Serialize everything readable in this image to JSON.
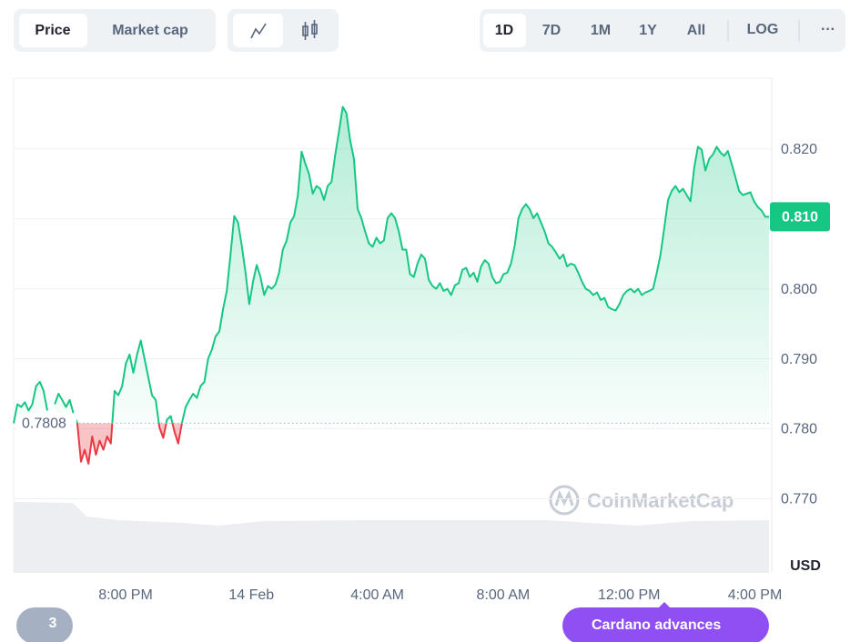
{
  "toolbar": {
    "price": "Price",
    "market_cap": "Market cap",
    "ranges": [
      "1D",
      "7D",
      "1M",
      "1Y",
      "All"
    ],
    "log": "LOG",
    "more": "···"
  },
  "chart_data": {
    "type": "line",
    "series": [
      {
        "color": "#16c784",
        "down_color": "#ea3943",
        "values": [
          0.7808,
          0.7835,
          0.7831,
          0.7838,
          0.7826,
          0.7835,
          0.7861,
          0.7867,
          0.7854,
          0.7826,
          null,
          0.7835,
          0.785,
          0.7841,
          0.7831,
          0.7841,
          0.7822,
          0.7808,
          0.7753,
          0.777,
          0.775,
          0.7789,
          0.7763,
          0.7783,
          0.777,
          0.7789,
          0.7779,
          0.7854,
          0.7848,
          0.7861,
          0.7893,
          0.7906,
          0.788,
          0.7906,
          0.7926,
          0.79,
          0.7874,
          0.7848,
          0.7841,
          0.7802,
          0.7787,
          0.7813,
          0.7818,
          0.7796,
          0.7779,
          0.7808,
          0.7831,
          0.7841,
          0.785,
          0.7844,
          0.7861,
          0.7867,
          0.79,
          0.7913,
          0.7932,
          0.7939,
          0.7971,
          0.7997,
          0.8049,
          0.8104,
          0.8095,
          0.8062,
          0.8023,
          0.7978,
          0.801,
          0.8034,
          0.8017,
          0.7991,
          0.8004,
          0.8,
          0.8006,
          0.8023,
          0.8056,
          0.8069,
          0.8095,
          0.8104,
          0.8134,
          0.8196,
          0.8179,
          0.8164,
          0.8136,
          0.8147,
          0.8143,
          0.8127,
          0.8147,
          0.8153,
          0.8192,
          0.8225,
          0.826,
          0.8251,
          0.8212,
          0.8186,
          0.8114,
          0.8101,
          0.8082,
          0.8065,
          0.806,
          0.8073,
          0.8065,
          0.8069,
          0.8101,
          0.8108,
          0.8101,
          0.8082,
          0.8056,
          0.8056,
          0.8021,
          0.8017,
          0.8036,
          0.8049,
          0.8043,
          0.8013,
          0.8004,
          0.8,
          0.8008,
          0.7997,
          0.8,
          0.7991,
          0.8005,
          0.8008,
          0.8027,
          0.803,
          0.8017,
          0.8023,
          0.801,
          0.8032,
          0.8041,
          0.8036,
          0.8017,
          0.8008,
          0.801,
          0.8021,
          0.8023,
          0.8036,
          0.8062,
          0.8101,
          0.8114,
          0.8121,
          0.8114,
          0.8101,
          0.8108,
          0.8095,
          0.8082,
          0.8065,
          0.806,
          0.8052,
          0.8043,
          0.8049,
          0.8032,
          0.8036,
          0.8034,
          0.8023,
          0.801,
          0.8,
          0.7997,
          0.7991,
          0.7995,
          0.7984,
          0.7987,
          0.7974,
          0.7971,
          0.7969,
          0.7978,
          0.7991,
          0.7997,
          0.8,
          0.7995,
          0.8,
          0.7991,
          0.7995,
          0.7997,
          0.8,
          0.8023,
          0.8049,
          0.8088,
          0.8127,
          0.814,
          0.8147,
          0.8138,
          0.8143,
          0.8134,
          0.8125,
          0.8173,
          0.8203,
          0.8199,
          0.8169,
          0.8186,
          0.8192,
          0.8203,
          0.8195,
          0.819,
          0.8197,
          0.8179,
          0.816,
          0.814,
          0.8134,
          0.8136,
          0.8138,
          0.8125,
          0.8117,
          0.8112,
          0.8103,
          0.8103
        ]
      }
    ],
    "ylim": [
      0.7594,
      0.8301
    ],
    "yticks": [
      {
        "value": 0.82,
        "label": "0.820"
      },
      {
        "value": 0.81,
        "label": "0.810"
      },
      {
        "value": 0.8,
        "label": "0.800"
      },
      {
        "value": 0.79,
        "label": "0.790"
      },
      {
        "value": 0.78,
        "label": "0.780"
      },
      {
        "value": 0.77,
        "label": "0.770"
      }
    ],
    "grid": true,
    "y_axis_label": "USD",
    "xtick_labels": [
      "8:00 PM",
      "14 Feb",
      "4:00 AM",
      "8:00 AM",
      "12:00 PM",
      "4:00 PM"
    ],
    "reference": 0.7808,
    "current": {
      "value": 0.8103,
      "label": "0.810"
    },
    "watermark": "CoinMarketCap"
  },
  "news": {
    "count": "3",
    "text": "Cardano advances"
  }
}
